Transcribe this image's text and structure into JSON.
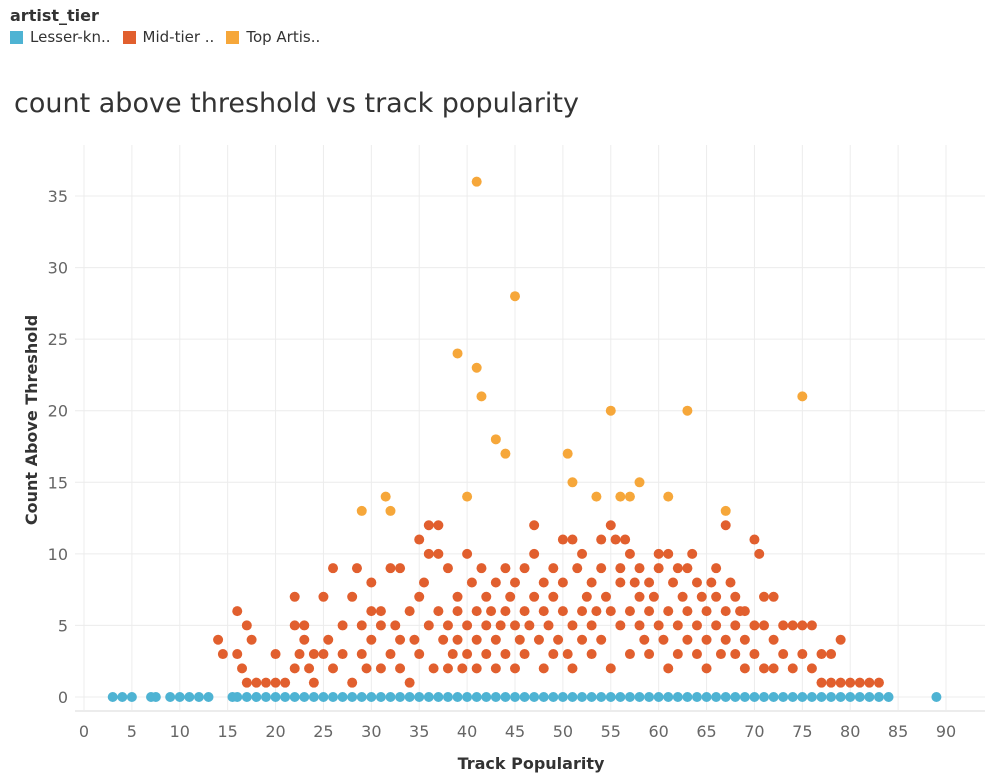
{
  "legend": {
    "title": "artist_tier",
    "items": [
      {
        "label": "Lesser-kn..",
        "color": "#4eb3d3"
      },
      {
        "label": "Mid-tier ..",
        "color": "#e15f2e"
      },
      {
        "label": "Top Artis..",
        "color": "#f6a73a"
      }
    ]
  },
  "chart_data": {
    "type": "scatter",
    "title": "count above threshold vs track popularity",
    "xlabel": "Track Popularity",
    "ylabel": "Count Above Threshold",
    "xlim": [
      0,
      90
    ],
    "ylim": [
      0,
      35
    ],
    "xticks": [
      0,
      5,
      10,
      15,
      20,
      25,
      30,
      35,
      40,
      45,
      50,
      55,
      60,
      65,
      70,
      75,
      80,
      85,
      90
    ],
    "yticks": [
      0,
      5,
      10,
      15,
      20,
      25,
      30,
      35
    ],
    "grid": true,
    "legend_position": "top-left",
    "series": [
      {
        "name": "Lesser-kn..",
        "color": "#4eb3d3",
        "points": [
          [
            3,
            0
          ],
          [
            4,
            0
          ],
          [
            5,
            0
          ],
          [
            7,
            0
          ],
          [
            7.5,
            0
          ],
          [
            9,
            0
          ],
          [
            10,
            0
          ],
          [
            11,
            0
          ],
          [
            12,
            0
          ],
          [
            13,
            0
          ],
          [
            15.5,
            0
          ],
          [
            16,
            0
          ],
          [
            17,
            0
          ],
          [
            18,
            0
          ],
          [
            19,
            0
          ],
          [
            20,
            0
          ],
          [
            21,
            0
          ],
          [
            22,
            0
          ],
          [
            23,
            0
          ],
          [
            24,
            0
          ],
          [
            25,
            0
          ],
          [
            26,
            0
          ],
          [
            27,
            0
          ],
          [
            28,
            0
          ],
          [
            29,
            0
          ],
          [
            30,
            0
          ],
          [
            31,
            0
          ],
          [
            32,
            0
          ],
          [
            33,
            0
          ],
          [
            34,
            0
          ],
          [
            35,
            0
          ],
          [
            36,
            0
          ],
          [
            37,
            0
          ],
          [
            38,
            0
          ],
          [
            39,
            0
          ],
          [
            40,
            0
          ],
          [
            41,
            0
          ],
          [
            42,
            0
          ],
          [
            43,
            0
          ],
          [
            44,
            0
          ],
          [
            45,
            0
          ],
          [
            46,
            0
          ],
          [
            47,
            0
          ],
          [
            48,
            0
          ],
          [
            49,
            0
          ],
          [
            50,
            0
          ],
          [
            51,
            0
          ],
          [
            52,
            0
          ],
          [
            53,
            0
          ],
          [
            54,
            0
          ],
          [
            55,
            0
          ],
          [
            56,
            0
          ],
          [
            57,
            0
          ],
          [
            58,
            0
          ],
          [
            59,
            0
          ],
          [
            60,
            0
          ],
          [
            61,
            0
          ],
          [
            62,
            0
          ],
          [
            63,
            0
          ],
          [
            64,
            0
          ],
          [
            65,
            0
          ],
          [
            66,
            0
          ],
          [
            67,
            0
          ],
          [
            68,
            0
          ],
          [
            69,
            0
          ],
          [
            70,
            0
          ],
          [
            71,
            0
          ],
          [
            72,
            0
          ],
          [
            73,
            0
          ],
          [
            74,
            0
          ],
          [
            75,
            0
          ],
          [
            76,
            0
          ],
          [
            77,
            0
          ],
          [
            78,
            0
          ],
          [
            79,
            0
          ],
          [
            80,
            0
          ],
          [
            81,
            0
          ],
          [
            82,
            0
          ],
          [
            83,
            0
          ],
          [
            84,
            0
          ],
          [
            89,
            0
          ]
        ]
      },
      {
        "name": "Mid-tier ..",
        "color": "#e15f2e",
        "points": [
          [
            14,
            4
          ],
          [
            14.5,
            3
          ],
          [
            16,
            6
          ],
          [
            16,
            3
          ],
          [
            16.5,
            2
          ],
          [
            17,
            1
          ],
          [
            17,
            5
          ],
          [
            17.5,
            4
          ],
          [
            18,
            1
          ],
          [
            19,
            1
          ],
          [
            20,
            1
          ],
          [
            20,
            3
          ],
          [
            21,
            1
          ],
          [
            22,
            2
          ],
          [
            22,
            5
          ],
          [
            22,
            7
          ],
          [
            22.5,
            3
          ],
          [
            23,
            5
          ],
          [
            23,
            4
          ],
          [
            23.5,
            2
          ],
          [
            24,
            3
          ],
          [
            24,
            1
          ],
          [
            25,
            3
          ],
          [
            25,
            7
          ],
          [
            25.5,
            4
          ],
          [
            26,
            9
          ],
          [
            26,
            2
          ],
          [
            27,
            3
          ],
          [
            27,
            5
          ],
          [
            28,
            7
          ],
          [
            28,
            1
          ],
          [
            28.5,
            9
          ],
          [
            29,
            3
          ],
          [
            29,
            5
          ],
          [
            29.5,
            2
          ],
          [
            30,
            8
          ],
          [
            30,
            6
          ],
          [
            30,
            4
          ],
          [
            31,
            6
          ],
          [
            31,
            2
          ],
          [
            31,
            5
          ],
          [
            32,
            9
          ],
          [
            32,
            3
          ],
          [
            32.5,
            5
          ],
          [
            33,
            9
          ],
          [
            33,
            4
          ],
          [
            33,
            2
          ],
          [
            34,
            6
          ],
          [
            34,
            1
          ],
          [
            34.5,
            4
          ],
          [
            35,
            7
          ],
          [
            35,
            3
          ],
          [
            35,
            11
          ],
          [
            35.5,
            8
          ],
          [
            36,
            5
          ],
          [
            36,
            10
          ],
          [
            36,
            12
          ],
          [
            36.5,
            2
          ],
          [
            37,
            10
          ],
          [
            37,
            12
          ],
          [
            37,
            6
          ],
          [
            37.5,
            4
          ],
          [
            38,
            9
          ],
          [
            38,
            5
          ],
          [
            38,
            2
          ],
          [
            38.5,
            3
          ],
          [
            39,
            6
          ],
          [
            39,
            4
          ],
          [
            39,
            7
          ],
          [
            39.5,
            2
          ],
          [
            40,
            10
          ],
          [
            40,
            5
          ],
          [
            40,
            3
          ],
          [
            40.5,
            8
          ],
          [
            41,
            6
          ],
          [
            41,
            4
          ],
          [
            41,
            2
          ],
          [
            41.5,
            9
          ],
          [
            42,
            5
          ],
          [
            42,
            7
          ],
          [
            42,
            3
          ],
          [
            42.5,
            6
          ],
          [
            43,
            4
          ],
          [
            43,
            8
          ],
          [
            43,
            2
          ],
          [
            43.5,
            5
          ],
          [
            44,
            9
          ],
          [
            44,
            6
          ],
          [
            44,
            3
          ],
          [
            44.5,
            7
          ],
          [
            45,
            5
          ],
          [
            45,
            8
          ],
          [
            45,
            2
          ],
          [
            45.5,
            4
          ],
          [
            46,
            9
          ],
          [
            46,
            6
          ],
          [
            46,
            3
          ],
          [
            46.5,
            5
          ],
          [
            47,
            7
          ],
          [
            47,
            10
          ],
          [
            47,
            12
          ],
          [
            47.5,
            4
          ],
          [
            48,
            8
          ],
          [
            48,
            6
          ],
          [
            48,
            2
          ],
          [
            48.5,
            5
          ],
          [
            49,
            9
          ],
          [
            49,
            3
          ],
          [
            49,
            7
          ],
          [
            49.5,
            4
          ],
          [
            50,
            11
          ],
          [
            50,
            6
          ],
          [
            50,
            8
          ],
          [
            50.5,
            3
          ],
          [
            51,
            11
          ],
          [
            51,
            5
          ],
          [
            51,
            2
          ],
          [
            51.5,
            9
          ],
          [
            52,
            10
          ],
          [
            52,
            6
          ],
          [
            52,
            4
          ],
          [
            52.5,
            7
          ],
          [
            53,
            8
          ],
          [
            53,
            5
          ],
          [
            53,
            3
          ],
          [
            53.5,
            6
          ],
          [
            54,
            9
          ],
          [
            54,
            11
          ],
          [
            54,
            4
          ],
          [
            54.5,
            7
          ],
          [
            55,
            12
          ],
          [
            55,
            6
          ],
          [
            55,
            2
          ],
          [
            55.5,
            11
          ],
          [
            56,
            9
          ],
          [
            56,
            5
          ],
          [
            56,
            8
          ],
          [
            56.5,
            11
          ],
          [
            57,
            10
          ],
          [
            57,
            6
          ],
          [
            57,
            3
          ],
          [
            57.5,
            8
          ],
          [
            58,
            9
          ],
          [
            58,
            5
          ],
          [
            58,
            7
          ],
          [
            58.5,
            4
          ],
          [
            59,
            8
          ],
          [
            59,
            6
          ],
          [
            59,
            3
          ],
          [
            59.5,
            7
          ],
          [
            60,
            10
          ],
          [
            60,
            5
          ],
          [
            60,
            9
          ],
          [
            60.5,
            4
          ],
          [
            61,
            10
          ],
          [
            61,
            6
          ],
          [
            61,
            2
          ],
          [
            61.5,
            8
          ],
          [
            62,
            9
          ],
          [
            62,
            5
          ],
          [
            62,
            3
          ],
          [
            62.5,
            7
          ],
          [
            63,
            9
          ],
          [
            63,
            6
          ],
          [
            63,
            4
          ],
          [
            63.5,
            10
          ],
          [
            64,
            8
          ],
          [
            64,
            5
          ],
          [
            64,
            3
          ],
          [
            64.5,
            7
          ],
          [
            65,
            6
          ],
          [
            65,
            4
          ],
          [
            65,
            2
          ],
          [
            65.5,
            8
          ],
          [
            66,
            9
          ],
          [
            66,
            5
          ],
          [
            66,
            7
          ],
          [
            66.5,
            3
          ],
          [
            67,
            12
          ],
          [
            67,
            6
          ],
          [
            67,
            4
          ],
          [
            67.5,
            8
          ],
          [
            68,
            7
          ],
          [
            68,
            5
          ],
          [
            68,
            3
          ],
          [
            68.5,
            6
          ],
          [
            69,
            4
          ],
          [
            69,
            2
          ],
          [
            69,
            6
          ],
          [
            70,
            11
          ],
          [
            70,
            5
          ],
          [
            70,
            3
          ],
          [
            70.5,
            10
          ],
          [
            71,
            7
          ],
          [
            71,
            5
          ],
          [
            71,
            2
          ],
          [
            72,
            7
          ],
          [
            72,
            4
          ],
          [
            72,
            2
          ],
          [
            73,
            5
          ],
          [
            73,
            3
          ],
          [
            74,
            5
          ],
          [
            74,
            2
          ],
          [
            75,
            5
          ],
          [
            75,
            3
          ],
          [
            76,
            5
          ],
          [
            76,
            2
          ],
          [
            77,
            3
          ],
          [
            77,
            1
          ],
          [
            78,
            3
          ],
          [
            78,
            1
          ],
          [
            79,
            4
          ],
          [
            79,
            1
          ],
          [
            80,
            1
          ],
          [
            81,
            1
          ],
          [
            82,
            1
          ],
          [
            83,
            1
          ]
        ]
      },
      {
        "name": "Top Artis..",
        "color": "#f6a73a",
        "points": [
          [
            29,
            13
          ],
          [
            31.5,
            14
          ],
          [
            32,
            13
          ],
          [
            39,
            24
          ],
          [
            40,
            14
          ],
          [
            41,
            23
          ],
          [
            41,
            36
          ],
          [
            41.5,
            21
          ],
          [
            43,
            18
          ],
          [
            44,
            17
          ],
          [
            45,
            28
          ],
          [
            50.5,
            17
          ],
          [
            51,
            15
          ],
          [
            53.5,
            14
          ],
          [
            55,
            20
          ],
          [
            56,
            14
          ],
          [
            57,
            14
          ],
          [
            58,
            15
          ],
          [
            61,
            14
          ],
          [
            63,
            20
          ],
          [
            67,
            13
          ],
          [
            75,
            21
          ]
        ]
      }
    ]
  }
}
